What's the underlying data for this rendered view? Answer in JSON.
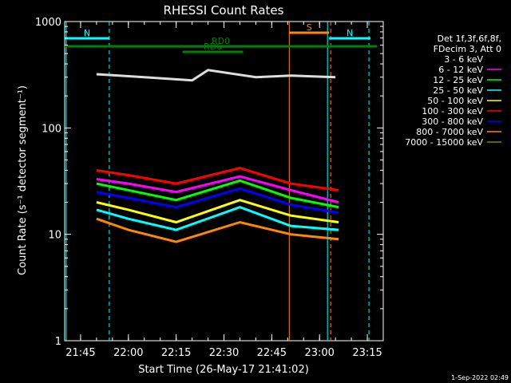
{
  "chart_data": {
    "type": "line",
    "title": "RHESSI Count Rates",
    "xlabel": "Start Time (26-May-17 21:41:02)",
    "ylabel": "Count Rate (s⁻¹ detector segment⁻¹)",
    "ylog": true,
    "ylim": [
      1,
      1000
    ],
    "xlim": [
      "21:40:00",
      "23:20:00"
    ],
    "x_ticks": [
      "21:45",
      "22:00",
      "22:15",
      "22:30",
      "22:45",
      "23:00",
      "23:15"
    ],
    "y_ticks": [
      "1",
      "10",
      "100",
      "1000"
    ],
    "grid": false,
    "legend_position": "right",
    "legend_header": [
      "Det 1f,3f,6f,8f,",
      "FDecim 3, Att 0"
    ],
    "series": [
      {
        "name": "3 - 6 keV",
        "color": "#000000",
        "values": [
          {
            "t": "21:50:00",
            "y": 320
          },
          {
            "t": "22:05:00",
            "y": 300
          },
          {
            "t": "22:20:00",
            "y": 280
          },
          {
            "t": "22:25:00",
            "y": 350
          },
          {
            "t": "22:40:00",
            "y": 300
          },
          {
            "t": "22:51:00",
            "y": 310
          },
          {
            "t": "23:05:00",
            "y": 300
          }
        ]
      },
      {
        "name": "6 - 12 keV",
        "color": "#ff00ff",
        "values": [
          {
            "t": "21:50:00",
            "y": 33
          },
          {
            "t": "22:00:00",
            "y": 30
          },
          {
            "t": "22:15:00",
            "y": 25
          },
          {
            "t": "22:35:00",
            "y": 35
          },
          {
            "t": "22:51:00",
            "y": 26
          },
          {
            "t": "23:06:00",
            "y": 20
          }
        ]
      },
      {
        "name": "12 - 25 keV",
        "color": "#00ff00",
        "values": [
          {
            "t": "21:50:00",
            "y": 30
          },
          {
            "t": "22:00:00",
            "y": 26
          },
          {
            "t": "22:15:00",
            "y": 21
          },
          {
            "t": "22:35:00",
            "y": 32
          },
          {
            "t": "22:51:00",
            "y": 22
          },
          {
            "t": "23:06:00",
            "y": 18
          }
        ]
      },
      {
        "name": "25 - 50 keV",
        "color": "#00ffff",
        "values": [
          {
            "t": "21:50:00",
            "y": 17
          },
          {
            "t": "22:00:00",
            "y": 14
          },
          {
            "t": "22:15:00",
            "y": 11
          },
          {
            "t": "22:35:00",
            "y": 18
          },
          {
            "t": "22:51:00",
            "y": 12
          },
          {
            "t": "23:06:00",
            "y": 11
          }
        ]
      },
      {
        "name": "50 - 100 keV",
        "color": "#ffff00",
        "values": [
          {
            "t": "21:50:00",
            "y": 20
          },
          {
            "t": "22:00:00",
            "y": 17
          },
          {
            "t": "22:15:00",
            "y": 13
          },
          {
            "t": "22:35:00",
            "y": 21
          },
          {
            "t": "22:51:00",
            "y": 15
          },
          {
            "t": "23:06:00",
            "y": 13
          }
        ]
      },
      {
        "name": "100 - 300 keV",
        "color": "#ff0000",
        "values": [
          {
            "t": "21:50:00",
            "y": 40
          },
          {
            "t": "22:00:00",
            "y": 36
          },
          {
            "t": "22:15:00",
            "y": 30
          },
          {
            "t": "22:35:00",
            "y": 42
          },
          {
            "t": "22:51:00",
            "y": 30
          },
          {
            "t": "23:06:00",
            "y": 26
          }
        ]
      },
      {
        "name": "300 - 800 keV",
        "color": "#0000ff",
        "values": [
          {
            "t": "21:50:00",
            "y": 25
          },
          {
            "t": "22:00:00",
            "y": 22
          },
          {
            "t": "22:15:00",
            "y": 18
          },
          {
            "t": "22:35:00",
            "y": 27
          },
          {
            "t": "22:51:00",
            "y": 19
          },
          {
            "t": "23:06:00",
            "y": 16
          }
        ]
      },
      {
        "name": "800 - 7000 keV",
        "color": "#ff8800",
        "values": [
          {
            "t": "21:50:00",
            "y": 14
          },
          {
            "t": "22:00:00",
            "y": 11
          },
          {
            "t": "22:15:00",
            "y": 8.5
          },
          {
            "t": "22:35:00",
            "y": 13
          },
          {
            "t": "22:51:00",
            "y": 10
          },
          {
            "t": "23:06:00",
            "y": 9
          }
        ]
      },
      {
        "name": "7000 - 15000 keV",
        "color": "#808000",
        "values": []
      }
    ],
    "annotations": [
      {
        "label": "N",
        "color": "#00ffff",
        "t_start": "21:40:00",
        "t_end": "21:54:00"
      },
      {
        "label": "N",
        "color": "#00ffff",
        "t_start": "23:03:00",
        "t_end": "23:16:00"
      },
      {
        "label": "S",
        "color": "#ff8800",
        "t_start": "22:50:30",
        "t_end": "23:03:00"
      },
      {
        "label": "RD0",
        "color": "#008000",
        "t_start": "21:40:00",
        "t_end": "23:18:00"
      },
      {
        "label": "RD6",
        "color": "#008000",
        "t_start": "22:17:00",
        "t_end": "22:36:00"
      }
    ],
    "vertical_lines": [
      {
        "t": "21:40:30",
        "color": "#00ffff",
        "dashed": false
      },
      {
        "t": "21:54:00",
        "color": "#00ffff",
        "dashed": true
      },
      {
        "t": "22:50:30",
        "color": "#ff8800",
        "dashed": false
      },
      {
        "t": "23:02:30",
        "color": "#00ffff",
        "dashed": false
      },
      {
        "t": "23:03:30",
        "color": "#ff8800",
        "dashed": true
      },
      {
        "t": "23:15:30",
        "color": "#00ffff",
        "dashed": true
      }
    ],
    "footer_timestamp": "1-Sep-2022 02:49"
  }
}
